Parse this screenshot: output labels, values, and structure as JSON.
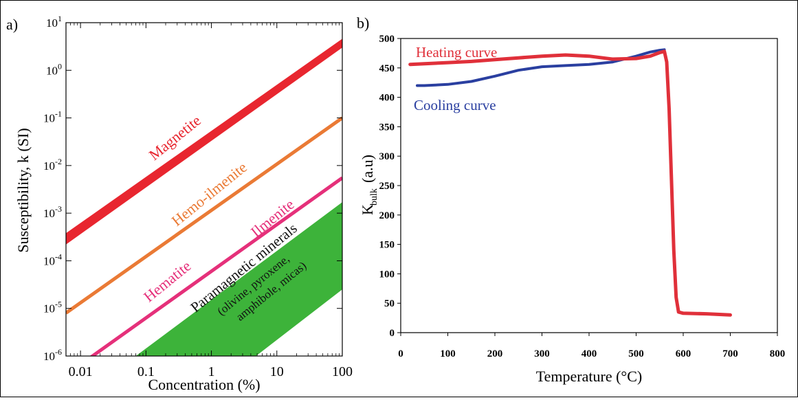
{
  "colors": {
    "magnetite": "#e8262f",
    "hemo_ilmenite": "#ea7a35",
    "hematite_ilmenite": "#e5307a",
    "paramagnetic": "#3db33a",
    "heating": "#e0303a",
    "cooling": "#2a3fa0"
  },
  "chart_data": [
    {
      "panel_label": "a)",
      "type": "line",
      "xscale": "log",
      "yscale": "log",
      "xlabel": "Concentration (%)",
      "ylabel": "Susceptibility, k (SI)",
      "xlim": [
        0.006,
        100
      ],
      "ylim": [
        1e-06,
        10
      ],
      "xticks": [
        {
          "value": 0.01,
          "label": "0.01"
        },
        {
          "value": 0.1,
          "label": "0.1"
        },
        {
          "value": 1,
          "label": "1"
        },
        {
          "value": 10,
          "label": "10"
        },
        {
          "value": 100,
          "label": "100"
        }
      ],
      "yticks": [
        {
          "value": 1e-06,
          "base": "10",
          "exp": "-6"
        },
        {
          "value": 1e-05,
          "base": "10",
          "exp": "-5"
        },
        {
          "value": 0.0001,
          "base": "10",
          "exp": "-4"
        },
        {
          "value": 0.001,
          "base": "10",
          "exp": "-3"
        },
        {
          "value": 0.01,
          "base": "10",
          "exp": "-2"
        },
        {
          "value": 0.1,
          "base": "10",
          "exp": "-1"
        },
        {
          "value": 1,
          "base": "10",
          "exp": "0"
        },
        {
          "value": 10,
          "base": "10",
          "exp": "1"
        }
      ],
      "grid": false,
      "series": [
        {
          "name": "Magnetite",
          "x": [
            0.006,
            100
          ],
          "y_low": [
            0.00022,
            3.0
          ],
          "y_high": [
            0.00038,
            4.6
          ],
          "color_key": "magnetite"
        },
        {
          "name": "Hemo-ilmenite",
          "x": [
            0.006,
            100
          ],
          "y": [
            8e-06,
            0.1
          ],
          "color_key": "hemo_ilmenite"
        },
        {
          "name": "Hematite",
          "x": [
            0.006,
            100
          ],
          "y": [
            4e-07,
            0.0055
          ],
          "color_key": "hematite_ilmenite"
        },
        {
          "name": "Ilmenite",
          "x": [
            0.006,
            100
          ],
          "y": [
            4e-07,
            0.0055
          ],
          "color_key": "hematite_ilmenite"
        }
      ],
      "band": {
        "name": "Paramagnetic minerals",
        "subtitle": "(olivine, pyroxene, amphibole, micas)",
        "color_key": "paramagnetic",
        "lower": {
          "x": [
            4.8,
            100
          ],
          "y": [
            1e-06,
            2.5e-05
          ]
        },
        "upper": {
          "x": [
            0.07,
            100
          ],
          "y": [
            1e-06,
            0.0017
          ]
        }
      }
    },
    {
      "panel_label": "b)",
      "type": "line",
      "xlabel": "Temperature (°C)",
      "ylabel_main": "K",
      "ylabel_sub": "bulk",
      "ylabel_units": "(a.u)",
      "xlim": [
        0,
        800
      ],
      "ylim": [
        0,
        500
      ],
      "xticks": [
        0,
        100,
        200,
        300,
        400,
        500,
        600,
        700,
        800
      ],
      "yticks": [
        0,
        50,
        100,
        150,
        200,
        250,
        300,
        350,
        400,
        450,
        500
      ],
      "grid": false,
      "series": [
        {
          "name": "Heating curve",
          "color_key": "heating",
          "x": [
            20,
            50,
            100,
            150,
            200,
            250,
            300,
            350,
            400,
            450,
            500,
            530,
            550,
            560,
            565,
            570,
            575,
            580,
            585,
            590,
            600,
            650,
            700
          ],
          "y": [
            456,
            457,
            459,
            461,
            464,
            467,
            470,
            472,
            470,
            465,
            466,
            470,
            476,
            478,
            460,
            380,
            260,
            140,
            60,
            35,
            33,
            32,
            30
          ]
        },
        {
          "name": "Cooling curve",
          "color_key": "cooling",
          "x": [
            35,
            50,
            100,
            150,
            200,
            250,
            300,
            350,
            400,
            450,
            500,
            530,
            550,
            560
          ],
          "y": [
            420,
            420,
            422,
            427,
            436,
            446,
            452,
            454,
            456,
            460,
            470,
            477,
            480,
            481
          ]
        }
      ]
    }
  ]
}
